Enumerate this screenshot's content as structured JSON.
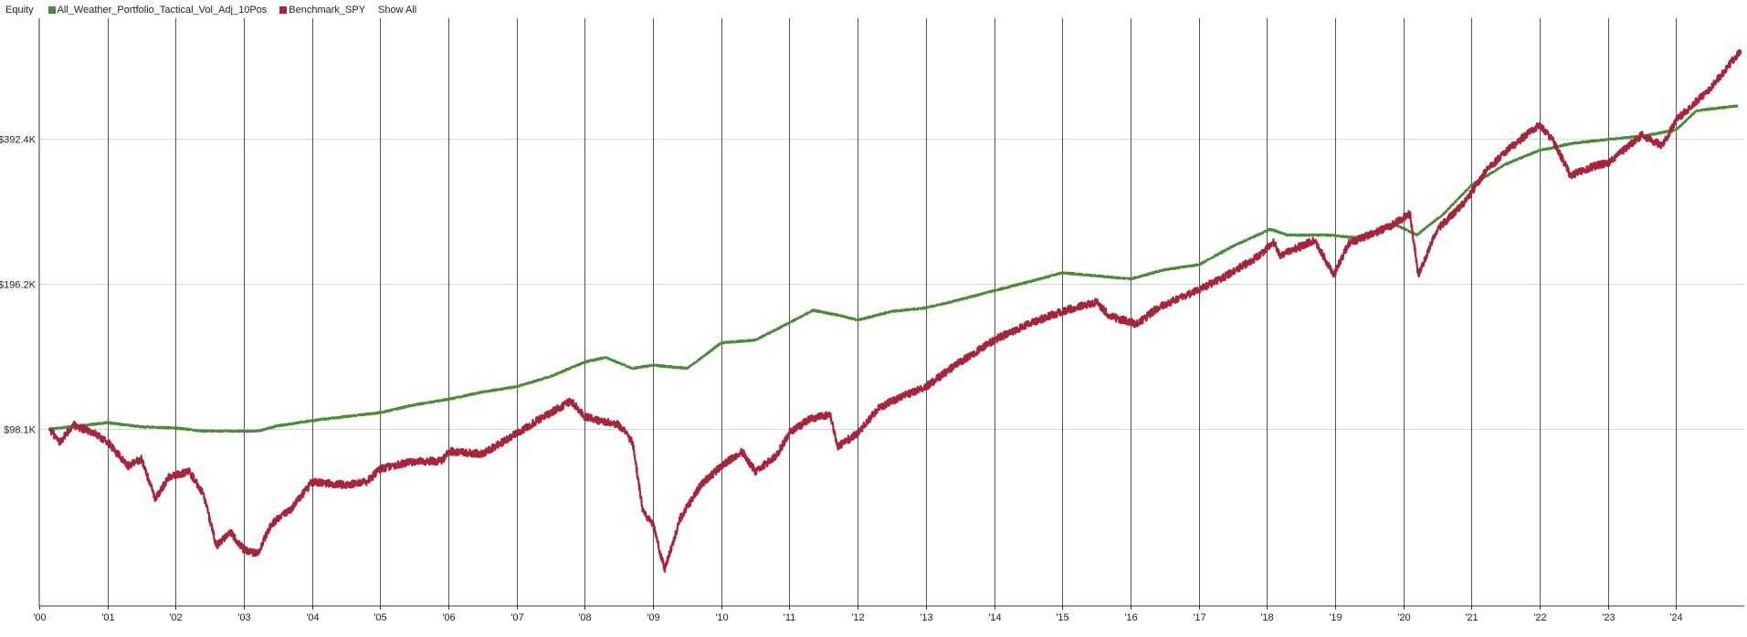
{
  "legend": {
    "title": "Equity",
    "show_all_label": "Show All"
  },
  "chart_data": {
    "type": "line",
    "title": "Equity",
    "xlabel": "",
    "ylabel": "",
    "y_scale": "log",
    "xlim": [
      2000.0,
      2025.0
    ],
    "ylim": [
      42000,
      700000
    ],
    "grid": {
      "vertical": true,
      "horizontal": true
    },
    "legend_position": "top-left",
    "y_ticks": [
      {
        "value": 98100,
        "label": "$98.1K"
      },
      {
        "value": 196200,
        "label": "$196.2K"
      },
      {
        "value": 392400,
        "label": "$392.4K"
      }
    ],
    "x_ticks": [
      {
        "value": 2000,
        "label": "'00"
      },
      {
        "value": 2001,
        "label": "'01"
      },
      {
        "value": 2002,
        "label": "'02"
      },
      {
        "value": 2003,
        "label": "'03"
      },
      {
        "value": 2004,
        "label": "'04"
      },
      {
        "value": 2005,
        "label": "'05"
      },
      {
        "value": 2006,
        "label": "'06"
      },
      {
        "value": 2007,
        "label": "'07"
      },
      {
        "value": 2008,
        "label": "'08"
      },
      {
        "value": 2009,
        "label": "'09"
      },
      {
        "value": 2010,
        "label": "'10"
      },
      {
        "value": 2011,
        "label": "'11"
      },
      {
        "value": 2012,
        "label": "'12"
      },
      {
        "value": 2013,
        "label": "'13"
      },
      {
        "value": 2014,
        "label": "'14"
      },
      {
        "value": 2015,
        "label": "'15"
      },
      {
        "value": 2016,
        "label": "'16"
      },
      {
        "value": 2017,
        "label": "'17"
      },
      {
        "value": 2018,
        "label": "'18"
      },
      {
        "value": 2019,
        "label": "'19"
      },
      {
        "value": 2020,
        "label": "'20"
      },
      {
        "value": 2021,
        "label": "'21"
      },
      {
        "value": 2022,
        "label": "'22"
      },
      {
        "value": 2023,
        "label": "'23"
      },
      {
        "value": 2024,
        "label": "'24"
      }
    ],
    "series": [
      {
        "name": "All_Weather_Portfolio_Tactical_Vol_Adj_10Pos",
        "color": "#4a8a3a",
        "points": [
          [
            2000.15,
            98000
          ],
          [
            2001.0,
            101000
          ],
          [
            2001.5,
            99000
          ],
          [
            2002.0,
            98500
          ],
          [
            2002.4,
            97000
          ],
          [
            2003.2,
            97000
          ],
          [
            2003.5,
            99500
          ],
          [
            2004.0,
            102000
          ],
          [
            2004.5,
            104000
          ],
          [
            2005.0,
            106000
          ],
          [
            2005.5,
            110000
          ],
          [
            2006.0,
            113000
          ],
          [
            2006.5,
            117000
          ],
          [
            2007.0,
            120000
          ],
          [
            2007.5,
            126000
          ],
          [
            2008.0,
            135000
          ],
          [
            2008.3,
            138000
          ],
          [
            2008.7,
            131000
          ],
          [
            2009.0,
            133000
          ],
          [
            2009.5,
            131000
          ],
          [
            2010.0,
            148000
          ],
          [
            2010.5,
            150000
          ],
          [
            2011.0,
            163000
          ],
          [
            2011.35,
            173000
          ],
          [
            2011.8,
            168000
          ],
          [
            2012.0,
            165000
          ],
          [
            2012.5,
            172000
          ],
          [
            2013.0,
            175000
          ],
          [
            2013.5,
            182000
          ],
          [
            2014.0,
            190000
          ],
          [
            2014.5,
            198000
          ],
          [
            2015.0,
            207000
          ],
          [
            2015.5,
            204000
          ],
          [
            2016.0,
            201000
          ],
          [
            2016.5,
            210000
          ],
          [
            2017.0,
            215000
          ],
          [
            2017.5,
            235000
          ],
          [
            2018.05,
            255000
          ],
          [
            2018.3,
            248000
          ],
          [
            2018.9,
            248000
          ],
          [
            2019.3,
            245000
          ],
          [
            2019.9,
            260000
          ],
          [
            2020.2,
            248000
          ],
          [
            2020.6,
            275000
          ],
          [
            2021.0,
            315000
          ],
          [
            2021.5,
            348000
          ],
          [
            2022.0,
            372000
          ],
          [
            2022.5,
            385000
          ],
          [
            2023.0,
            392000
          ],
          [
            2023.5,
            398000
          ],
          [
            2024.0,
            410000
          ],
          [
            2024.3,
            450000
          ],
          [
            2024.9,
            460000
          ]
        ]
      },
      {
        "name": "Benchmark_SPY",
        "color": "#a8243a",
        "points": [
          [
            2000.15,
            98000
          ],
          [
            2000.3,
            92000
          ],
          [
            2000.5,
            100000
          ],
          [
            2000.8,
            96000
          ],
          [
            2001.0,
            92000
          ],
          [
            2001.3,
            82000
          ],
          [
            2001.5,
            85000
          ],
          [
            2001.7,
            70000
          ],
          [
            2001.9,
            78000
          ],
          [
            2002.2,
            80000
          ],
          [
            2002.4,
            72000
          ],
          [
            2002.6,
            56000
          ],
          [
            2002.8,
            60000
          ],
          [
            2003.0,
            55000
          ],
          [
            2003.2,
            54000
          ],
          [
            2003.4,
            62000
          ],
          [
            2003.7,
            67000
          ],
          [
            2004.0,
            76000
          ],
          [
            2004.5,
            75000
          ],
          [
            2004.8,
            76000
          ],
          [
            2005.0,
            81000
          ],
          [
            2005.5,
            84000
          ],
          [
            2005.9,
            84000
          ],
          [
            2006.0,
            88000
          ],
          [
            2006.5,
            87000
          ],
          [
            2006.9,
            94000
          ],
          [
            2007.3,
            102000
          ],
          [
            2007.6,
            108000
          ],
          [
            2007.8,
            112000
          ],
          [
            2008.0,
            104000
          ],
          [
            2008.2,
            102000
          ],
          [
            2008.5,
            100000
          ],
          [
            2008.7,
            92000
          ],
          [
            2008.85,
            66000
          ],
          [
            2009.0,
            62000
          ],
          [
            2009.17,
            50000
          ],
          [
            2009.4,
            64000
          ],
          [
            2009.7,
            75000
          ],
          [
            2010.0,
            82000
          ],
          [
            2010.3,
            88000
          ],
          [
            2010.5,
            80000
          ],
          [
            2010.8,
            86000
          ],
          [
            2011.0,
            96000
          ],
          [
            2011.3,
            103000
          ],
          [
            2011.6,
            105000
          ],
          [
            2011.7,
            90000
          ],
          [
            2012.0,
            96000
          ],
          [
            2012.3,
            108000
          ],
          [
            2012.5,
            112000
          ],
          [
            2013.0,
            120000
          ],
          [
            2013.5,
            135000
          ],
          [
            2014.0,
            150000
          ],
          [
            2014.5,
            162000
          ],
          [
            2015.0,
            172000
          ],
          [
            2015.5,
            180000
          ],
          [
            2015.7,
            168000
          ],
          [
            2016.1,
            162000
          ],
          [
            2016.4,
            175000
          ],
          [
            2016.9,
            188000
          ],
          [
            2017.3,
            200000
          ],
          [
            2017.9,
            225000
          ],
          [
            2018.1,
            240000
          ],
          [
            2018.2,
            225000
          ],
          [
            2018.7,
            242000
          ],
          [
            2018.98,
            205000
          ],
          [
            2019.2,
            238000
          ],
          [
            2019.5,
            248000
          ],
          [
            2019.8,
            258000
          ],
          [
            2020.1,
            275000
          ],
          [
            2020.22,
            205000
          ],
          [
            2020.5,
            255000
          ],
          [
            2020.9,
            290000
          ],
          [
            2021.2,
            335000
          ],
          [
            2021.5,
            370000
          ],
          [
            2021.99,
            420000
          ],
          [
            2022.2,
            390000
          ],
          [
            2022.45,
            330000
          ],
          [
            2022.8,
            345000
          ],
          [
            2023.0,
            350000
          ],
          [
            2023.5,
            400000
          ],
          [
            2023.8,
            380000
          ],
          [
            2024.0,
            430000
          ],
          [
            2024.5,
            500000
          ],
          [
            2024.95,
            600000
          ]
        ]
      }
    ]
  }
}
